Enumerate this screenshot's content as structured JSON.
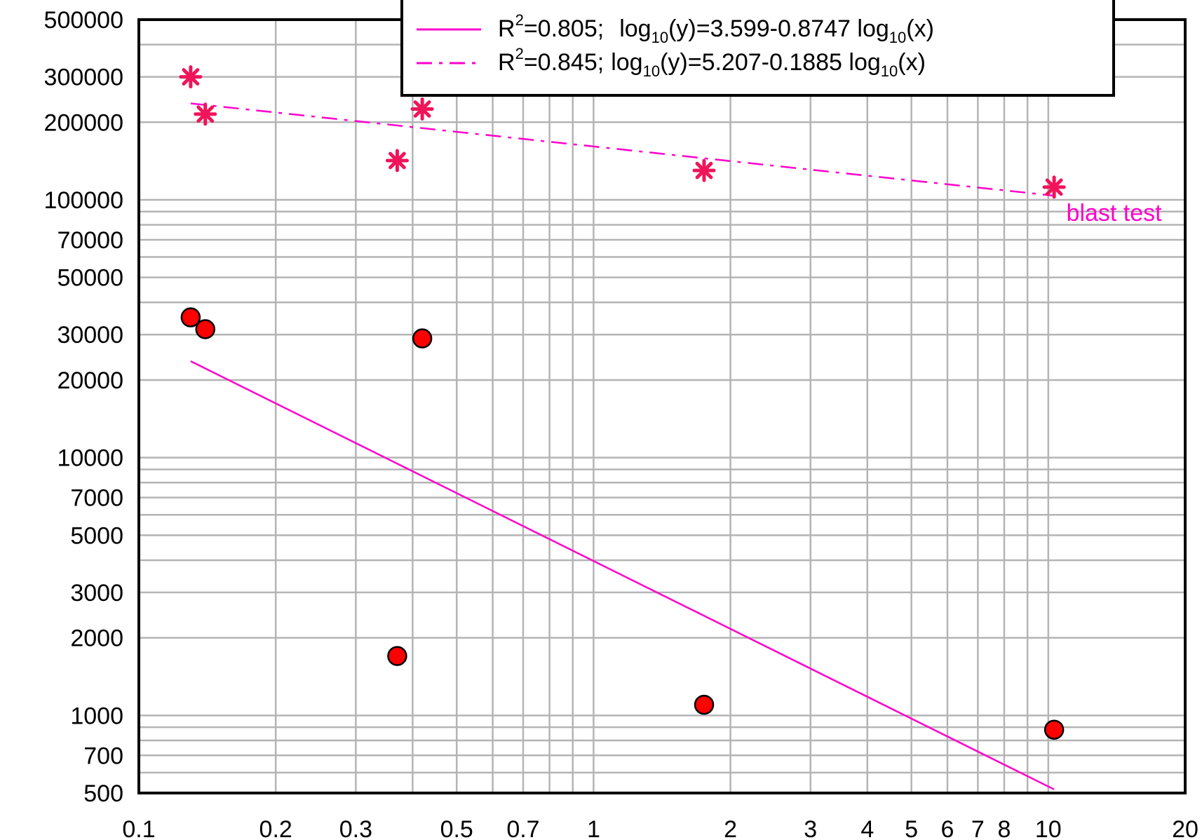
{
  "chart_data": {
    "type": "scatter",
    "xscale": "log",
    "yscale": "log",
    "xlim": [
      0.1,
      20
    ],
    "ylim": [
      500,
      500000
    ],
    "grid": true,
    "colors": {
      "grid": "#b4b4b4",
      "marker": "#ff0000",
      "star": "#f0145a",
      "fit": "#ff00cc",
      "frame": "#000000"
    },
    "x_ticks": [
      {
        "value": 0.1,
        "label": "0.1"
      },
      {
        "value": 0.2,
        "label": "0.2"
      },
      {
        "value": 0.3,
        "label": "0.3"
      },
      {
        "value": 0.5,
        "label": "0.5"
      },
      {
        "value": 0.7,
        "label": "0.7"
      },
      {
        "value": 1,
        "label": "1"
      },
      {
        "value": 2,
        "label": "2"
      },
      {
        "value": 3,
        "label": "3"
      },
      {
        "value": 4,
        "label": "4"
      },
      {
        "value": 5,
        "label": "5"
      },
      {
        "value": 6,
        "label": "6"
      },
      {
        "value": 7,
        "label": "7"
      },
      {
        "value": 8,
        "label": "8"
      },
      {
        "value": 10,
        "label": "10"
      },
      {
        "value": 20,
        "label": "20"
      }
    ],
    "y_ticks": [
      {
        "value": 500,
        "label": "500"
      },
      {
        "value": 700,
        "label": "700"
      },
      {
        "value": 1000,
        "label": "1000"
      },
      {
        "value": 2000,
        "label": "2000"
      },
      {
        "value": 3000,
        "label": "3000"
      },
      {
        "value": 5000,
        "label": "5000"
      },
      {
        "value": 7000,
        "label": "7000"
      },
      {
        "value": 10000,
        "label": "10000"
      },
      {
        "value": 20000,
        "label": "20000"
      },
      {
        "value": 30000,
        "label": "30000"
      },
      {
        "value": 50000,
        "label": "50000"
      },
      {
        "value": 70000,
        "label": "70000"
      },
      {
        "value": 100000,
        "label": "100000"
      },
      {
        "value": 200000,
        "label": "200000"
      },
      {
        "value": 300000,
        "label": "300000"
      },
      {
        "value": 500000,
        "label": "500000"
      }
    ],
    "x_grid": [
      0.1,
      0.2,
      0.3,
      0.4,
      0.5,
      0.6,
      0.7,
      0.8,
      0.9,
      1,
      2,
      3,
      4,
      5,
      6,
      7,
      8,
      9,
      10,
      20
    ],
    "y_grid": [
      500,
      600,
      700,
      800,
      900,
      1000,
      2000,
      3000,
      4000,
      5000,
      6000,
      7000,
      8000,
      9000,
      10000,
      20000,
      30000,
      40000,
      50000,
      60000,
      70000,
      80000,
      90000,
      100000,
      200000,
      300000,
      400000,
      500000
    ],
    "series": [
      {
        "marker": "circle",
        "points": [
          {
            "x": 0.13,
            "y": 35000
          },
          {
            "x": 0.14,
            "y": 31500
          },
          {
            "x": 0.37,
            "y": 1700
          },
          {
            "x": 0.42,
            "y": 29000
          },
          {
            "x": 1.75,
            "y": 1100
          },
          {
            "x": 10.3,
            "y": 880
          }
        ]
      },
      {
        "marker": "star",
        "points": [
          {
            "x": 0.13,
            "y": 300000
          },
          {
            "x": 0.14,
            "y": 215000
          },
          {
            "x": 0.37,
            "y": 142000
          },
          {
            "x": 0.42,
            "y": 225000
          },
          {
            "x": 1.75,
            "y": 130000
          },
          {
            "x": 10.3,
            "y": 112000
          }
        ]
      }
    ],
    "fits": [
      {
        "style": "solid",
        "r2_text": "=0.805;",
        "eq_lhs": "log",
        "eq_lhs_sub": "10",
        "eq_mid": "(y)=3.599-0.8747 log",
        "eq_rhs_sub": "10",
        "eq_rhs": "(x)",
        "intercept": 3.599,
        "slope": -0.8747,
        "x_range": [
          0.13,
          10.3
        ]
      },
      {
        "style": "dash-dot",
        "r2_text": "=0.845;",
        "eq_lhs": "log",
        "eq_lhs_sub": "10",
        "eq_mid": "(y)=5.207-0.1885 log",
        "eq_rhs_sub": "10",
        "eq_rhs": "(x)",
        "intercept": 5.207,
        "slope": -0.1885,
        "x_range": [
          0.13,
          10.3
        ]
      }
    ],
    "legend": {
      "placement": "top-center",
      "r_label": "R",
      "r_sup": "2"
    },
    "annotations": [
      {
        "text": "blast test",
        "x": 10.5,
        "y": 100000
      }
    ]
  }
}
